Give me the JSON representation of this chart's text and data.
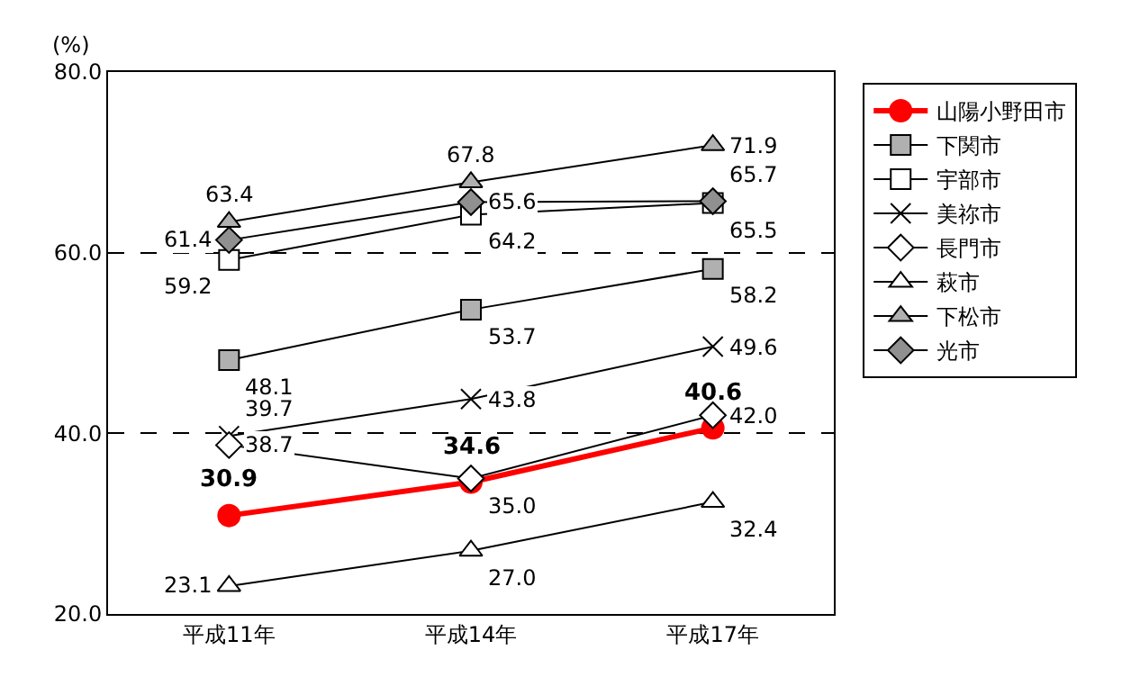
{
  "chart_data": {
    "type": "line",
    "ylabel": "(%)",
    "categories": [
      "平成11年",
      "平成14年",
      "平成17年"
    ],
    "ylim": [
      20,
      80
    ],
    "yticks": [
      {
        "value": 20,
        "label": "20.0"
      },
      {
        "value": 40,
        "label": "40.0"
      },
      {
        "value": 60,
        "label": "60.0"
      },
      {
        "value": 80,
        "label": "80.0"
      }
    ],
    "grid": "y",
    "legend": "right",
    "series": [
      {
        "name": "山陽小野田市",
        "color": "#ff0000",
        "marker": "circle",
        "values": [
          30.9,
          34.6,
          40.6
        ],
        "value_labels": [
          "30.9",
          "34.6",
          "40.6"
        ]
      },
      {
        "name": "下関市",
        "color": "#b0b0b0",
        "marker": "square",
        "values": [
          48.1,
          53.7,
          58.2
        ],
        "value_labels": [
          "48.1",
          "53.7",
          "58.2"
        ]
      },
      {
        "name": "宇部市",
        "color": "#ffffff",
        "marker": "square",
        "values": [
          59.2,
          64.2,
          65.5
        ],
        "value_labels": [
          "59.2",
          "64.2",
          "65.5"
        ]
      },
      {
        "name": "美祢市",
        "color": "#000000",
        "marker": "cross",
        "values": [
          39.7,
          43.8,
          49.6
        ],
        "value_labels": [
          "39.7",
          "43.8",
          "49.6"
        ]
      },
      {
        "name": "長門市",
        "color": "#ffffff",
        "marker": "diamond",
        "values": [
          38.7,
          35.0,
          42.0
        ],
        "value_labels": [
          "38.7",
          "35.0",
          "42.0"
        ]
      },
      {
        "name": "萩市",
        "color": "#ffffff",
        "marker": "triangle",
        "values": [
          23.1,
          27.0,
          32.4
        ],
        "value_labels": [
          "23.1",
          "27.0",
          "32.4"
        ]
      },
      {
        "name": "下松市",
        "color": "#b0b0b0",
        "marker": "triangle",
        "values": [
          63.4,
          67.8,
          71.9
        ],
        "value_labels": [
          "63.4",
          "67.8",
          "71.9"
        ]
      },
      {
        "name": "光市",
        "color": "#909090",
        "marker": "diamond",
        "values": [
          61.4,
          65.6,
          65.7
        ],
        "value_labels": [
          "61.4",
          "65.6",
          "65.7"
        ]
      }
    ]
  }
}
